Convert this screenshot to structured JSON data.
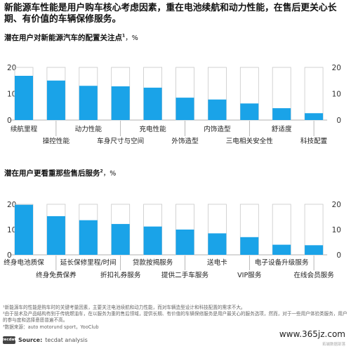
{
  "headline": "新能源车性能是用户购车核心考虑因素，重在电池续航和动力性能，在售后更关心长期、有价值的车辆保修服务。",
  "chart_data": [
    {
      "type": "bar",
      "title": "潜在用户对新能源汽车的配置关注点",
      "title_sup": "1",
      "title_unit": "，%",
      "categories": [
        "续航里程",
        "操控性能",
        "动力性能",
        "车身尺寸与空间",
        "充电性能",
        "外饰造型",
        "内饰造型",
        "三电相关安全性",
        "舒适度",
        "科技配置"
      ],
      "values": [
        16.8,
        15.0,
        13.0,
        12.8,
        12.3,
        8.5,
        7.8,
        6.3,
        4.5,
        2.6
      ],
      "ylim": [
        0,
        20
      ],
      "yticks": [
        0,
        10,
        20
      ],
      "label_rows": [
        0,
        1,
        0,
        1,
        0,
        1,
        0,
        1,
        0,
        1
      ],
      "bar_color": "#1aa3e8",
      "frame_color": "#c8c8c8"
    },
    {
      "type": "bar",
      "title": "潜在用户更看重那些售后服务",
      "title_sup": "2",
      "title_unit": "，%",
      "categories": [
        "终身电池质保",
        "终身免费保养",
        "延长保修里程/时间",
        "折扣礼券服务",
        "贷款按揭服务",
        "提供二手车服务",
        "送电卡",
        "VIP服务",
        "电子设备升级服务",
        "在线会员服务"
      ],
      "values": [
        19.8,
        15.3,
        13.7,
        12.2,
        11.2,
        10.0,
        8.5,
        7.0,
        4.0,
        3.8
      ],
      "ylim": [
        0,
        20
      ],
      "yticks": [
        0,
        10,
        20
      ],
      "label_rows": [
        0,
        1,
        0,
        1,
        0,
        1,
        0,
        1,
        0,
        1
      ],
      "bar_color": "#1aa3e8",
      "frame_color": "#c8c8c8"
    }
  ],
  "footnotes": {
    "note1": "¹新能源车的性能是购车时的关键考量因素，主要关注电池续航和动力性能，而对车辆造型设计和科技配置的需求不大。",
    "note2": "²由于技术及产品结构有别于传统燃油车，在以服务为重的售后领域，提供长期、有价值的车辆保修服务是用户最关心的服务选项，然而，对于一些用户体验类服务，用户的参与度和选择意愿普遍不高。",
    "data_source": "³数据来源：auto motorund sport，YooClub"
  },
  "source": {
    "logo": "tecdat",
    "label": "Source:",
    "text": "tecdat analysis"
  },
  "watermark": "www.365jz.com",
  "watermark_sub": "拓端数据部落"
}
